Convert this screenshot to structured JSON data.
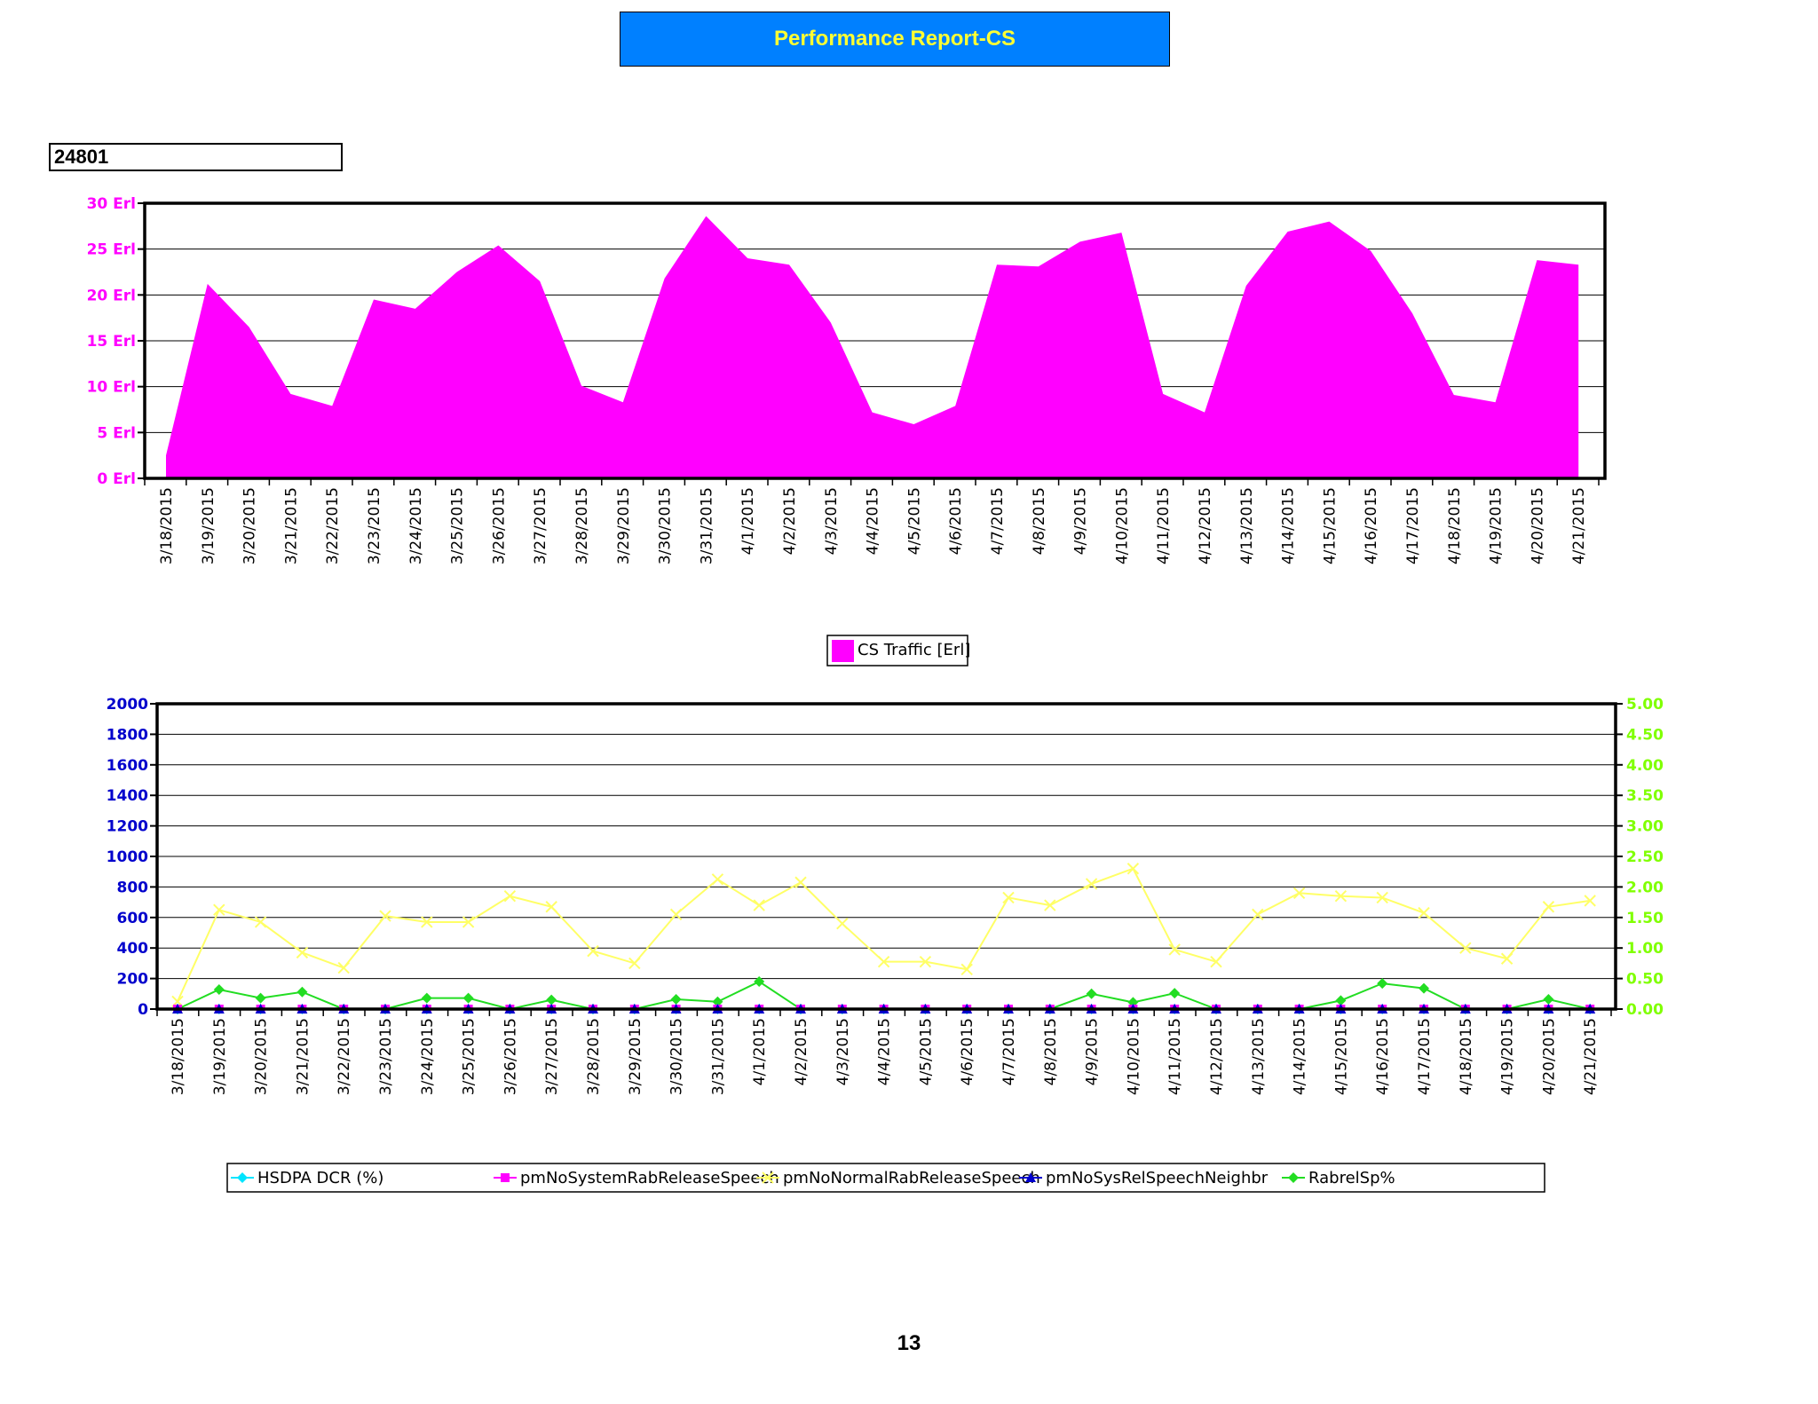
{
  "page": {
    "title": "Performance Report-CS",
    "cell_id": "24801",
    "page_number": "13"
  },
  "colors": {
    "traffic": "#ff00ff",
    "left_axis": "#0000cc",
    "right_axis": "#80ff00",
    "hsdpa": "#00e5ff",
    "pmSysRab": "#ff00ff",
    "pmNormal": "#ffff66",
    "pmNeighbr": "#0000cc",
    "rabrel": "#22dd22"
  },
  "chart_data": [
    {
      "type": "area",
      "categories": [
        "3/18/2015",
        "3/19/2015",
        "3/20/2015",
        "3/21/2015",
        "3/22/2015",
        "3/23/2015",
        "3/24/2015",
        "3/25/2015",
        "3/26/2015",
        "3/27/2015",
        "3/28/2015",
        "3/29/2015",
        "3/30/2015",
        "3/31/2015",
        "4/1/2015",
        "4/2/2015",
        "4/3/2015",
        "4/4/2015",
        "4/5/2015",
        "4/6/2015",
        "4/7/2015",
        "4/8/2015",
        "4/9/2015",
        "4/10/2015",
        "4/11/2015",
        "4/12/2015",
        "4/13/2015",
        "4/14/2015",
        "4/15/2015",
        "4/16/2015",
        "4/17/2015",
        "4/18/2015",
        "4/19/2015",
        "4/20/2015",
        "4/21/2015"
      ],
      "series": [
        {
          "name": "CS Traffic [Erl]",
          "values": [
            2.5,
            21.2,
            16.5,
            9.2,
            7.9,
            19.5,
            18.5,
            22.5,
            25.4,
            21.5,
            10.1,
            8.3,
            21.8,
            28.6,
            24,
            23.3,
            17,
            7.2,
            5.9,
            7.9,
            23.3,
            23.1,
            25.8,
            26.8,
            9.2,
            7.2,
            21,
            26.9,
            28,
            24.8,
            18,
            9.1,
            8.3,
            23.8,
            23.3
          ]
        }
      ],
      "ylim": [
        0,
        30
      ],
      "yticks": [
        "0 Erl",
        "5 Erl",
        "10 Erl",
        "15 Erl",
        "20 Erl",
        "25 Erl",
        "30 Erl"
      ],
      "grid": true,
      "legend": "bottom-center"
    },
    {
      "type": "line",
      "categories": [
        "3/18/2015",
        "3/19/2015",
        "3/20/2015",
        "3/21/2015",
        "3/22/2015",
        "3/23/2015",
        "3/24/2015",
        "3/25/2015",
        "3/26/2015",
        "3/27/2015",
        "3/28/2015",
        "3/29/2015",
        "3/30/2015",
        "3/31/2015",
        "4/1/2015",
        "4/2/2015",
        "4/3/2015",
        "4/4/2015",
        "4/5/2015",
        "4/6/2015",
        "4/7/2015",
        "4/8/2015",
        "4/9/2015",
        "4/10/2015",
        "4/11/2015",
        "4/12/2015",
        "4/13/2015",
        "4/14/2015",
        "4/15/2015",
        "4/16/2015",
        "4/17/2015",
        "4/18/2015",
        "4/19/2015",
        "4/20/2015",
        "4/21/2015"
      ],
      "series": [
        {
          "name": "HSDPA DCR (%)",
          "axis": "left",
          "marker": "diamond",
          "values": [
            0,
            0,
            0,
            0,
            0,
            0,
            0,
            0,
            0,
            0,
            0,
            0,
            0,
            0,
            0,
            0,
            0,
            0,
            0,
            0,
            0,
            0,
            0,
            0,
            0,
            0,
            0,
            0,
            0,
            0,
            0,
            0,
            0,
            0,
            0
          ]
        },
        {
          "name": "pmNoSystemRabReleaseSpeech",
          "axis": "left",
          "marker": "square",
          "values": [
            0,
            0,
            0,
            0,
            0,
            0,
            0,
            0,
            0,
            0,
            0,
            0,
            0,
            0,
            0,
            0,
            0,
            0,
            0,
            0,
            0,
            0,
            0,
            0,
            0,
            0,
            0,
            0,
            0,
            0,
            0,
            0,
            0,
            0,
            0
          ]
        },
        {
          "name": "pmNoNormalRabReleaseSpeech",
          "axis": "left",
          "marker": "x",
          "values": [
            50,
            650,
            570,
            370,
            270,
            610,
            570,
            570,
            740,
            670,
            380,
            300,
            620,
            850,
            680,
            830,
            560,
            310,
            310,
            260,
            730,
            680,
            820,
            920,
            390,
            310,
            620,
            760,
            740,
            730,
            630,
            400,
            330,
            670,
            710
          ]
        },
        {
          "name": "pmNoSysRelSpeechNeighbr",
          "axis": "left",
          "marker": "triangle",
          "values": [
            0,
            0,
            0,
            0,
            0,
            0,
            0,
            0,
            0,
            0,
            0,
            0,
            0,
            0,
            0,
            0,
            0,
            0,
            0,
            0,
            0,
            0,
            0,
            0,
            0,
            0,
            0,
            0,
            0,
            0,
            0,
            0,
            0,
            0,
            0
          ]
        },
        {
          "name": "RabrelSp%",
          "axis": "right",
          "marker": "diamond",
          "values": [
            0,
            0.32,
            0.18,
            0.28,
            0,
            0,
            0.18,
            0.18,
            0,
            0.15,
            0,
            0,
            0.16,
            0.12,
            0.45,
            0,
            0,
            0,
            0,
            0,
            0,
            0,
            0.25,
            0.11,
            0.26,
            0,
            0,
            0,
            0.14,
            0.42,
            0.34,
            0,
            0,
            0.16,
            0
          ]
        }
      ],
      "ylim": [
        0,
        2000
      ],
      "yticks": [
        "0",
        "200",
        "400",
        "600",
        "800",
        "1000",
        "1200",
        "1400",
        "1600",
        "1800",
        "2000"
      ],
      "y2lim": [
        0,
        5
      ],
      "y2ticks": [
        "0.00",
        "0.50",
        "1.00",
        "1.50",
        "2.00",
        "2.50",
        "3.00",
        "3.50",
        "4.00",
        "4.50",
        "5.00"
      ],
      "grid": true,
      "legend": "bottom"
    }
  ]
}
